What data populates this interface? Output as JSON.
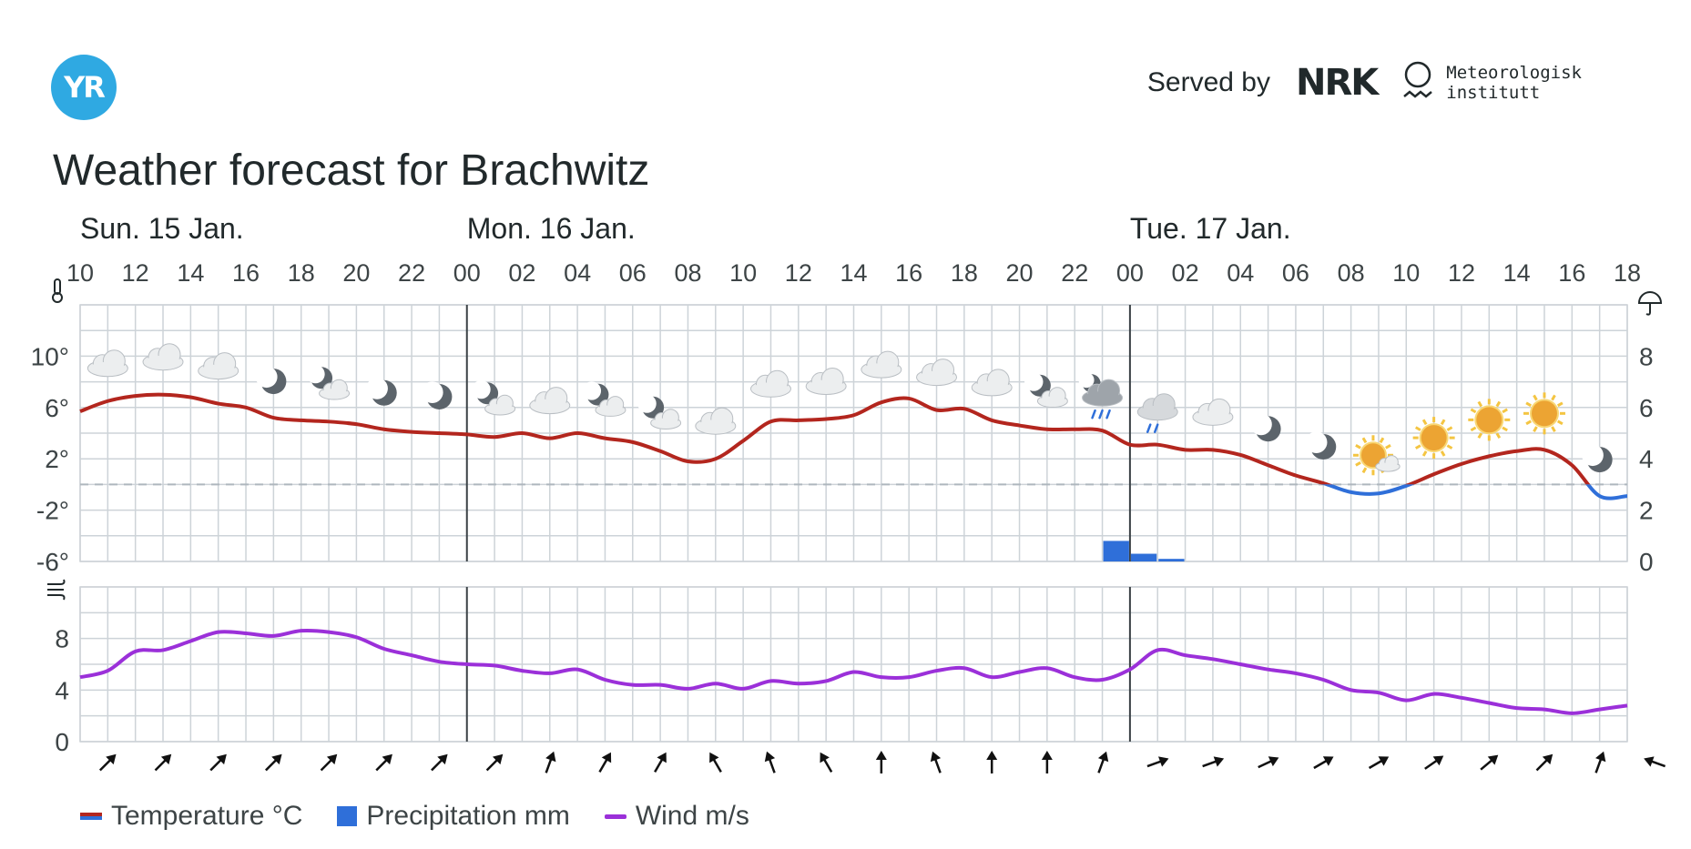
{
  "logo_text": "YR",
  "header": {
    "served_by": "Served by",
    "nrk": "NRK",
    "met_line1": "Meteorologisk",
    "met_line2": "institutt"
  },
  "title": "Weather forecast for Brachwitz",
  "legend": {
    "temperature": "Temperature °C",
    "precipitation": "Precipitation mm",
    "wind": "Wind m/s"
  },
  "colors": {
    "temp_warm": "#b3261e",
    "temp_cold": "#2f6fd9",
    "precip": "#2f6fd9",
    "wind": "#9b30d9",
    "grid": "#cdd3d8"
  },
  "chart_data": [
    {
      "type": "line",
      "days": [
        {
          "label": "Sun. 15 Jan.",
          "hour": 10
        },
        {
          "label": "Mon. 16 Jan.",
          "hour": 24
        },
        {
          "label": "Tue. 17 Jan.",
          "hour": 48
        }
      ],
      "x_tick_labels": [
        "10",
        "12",
        "14",
        "16",
        "18",
        "20",
        "22",
        "00",
        "02",
        "04",
        "06",
        "08",
        "10",
        "12",
        "14",
        "16",
        "18",
        "20",
        "22",
        "00",
        "02",
        "04",
        "06",
        "08",
        "10",
        "12",
        "14",
        "16",
        "18"
      ],
      "hours": [
        10,
        11,
        12,
        13,
        14,
        15,
        16,
        17,
        18,
        19,
        20,
        21,
        22,
        23,
        24,
        25,
        26,
        27,
        28,
        29,
        30,
        31,
        32,
        33,
        34,
        35,
        36,
        37,
        38,
        39,
        40,
        41,
        42,
        43,
        44,
        45,
        46,
        47,
        48,
        49,
        50,
        51,
        52,
        53,
        54,
        55,
        56,
        57,
        58,
        59,
        60,
        61,
        62,
        63,
        64,
        65,
        66
      ],
      "temperature": [
        5.7,
        6.5,
        6.9,
        7.0,
        6.8,
        6.3,
        6.0,
        5.2,
        5.0,
        4.9,
        4.7,
        4.3,
        4.1,
        4.0,
        3.9,
        3.7,
        4.0,
        3.6,
        4.0,
        3.6,
        3.3,
        2.6,
        1.8,
        2.0,
        3.4,
        4.9,
        5.0,
        5.1,
        5.4,
        6.4,
        6.7,
        5.8,
        5.9,
        5.0,
        4.6,
        4.3,
        4.3,
        4.2,
        3.1,
        3.1,
        2.7,
        2.7,
        2.3,
        1.5,
        0.7,
        0.1,
        -0.6,
        -0.7,
        -0.1,
        0.8,
        1.6,
        2.2,
        2.6,
        2.7,
        1.5,
        -0.9,
        -0.9
      ],
      "precipitation_bars": [
        {
          "from_hour": 47,
          "to_hour": 48,
          "value": 0.8
        },
        {
          "from_hour": 48,
          "to_hour": 49,
          "value": 0.3
        },
        {
          "from_hour": 49,
          "to_hour": 50,
          "value": 0.1
        }
      ],
      "symbols": [
        "cloudy",
        "cloudy",
        "cloudy",
        "clearsky_night",
        "partlycloudy_night",
        "clearsky_night",
        "clearsky_night",
        "partlycloudy_night",
        "cloudy",
        "partlycloudy_night",
        "partlycloudy_night",
        "cloudy",
        "cloudy",
        "cloudy",
        "cloudy",
        "cloudy",
        "cloudy",
        "partlycloudy_night",
        "rain",
        "lightrain",
        "cloudy",
        "clearsky_night",
        "clearsky_night",
        "partlycloudy_day",
        "clearsky_day",
        "clearsky_day",
        "clearsky_day",
        "clearsky_night"
      ],
      "left_axis_labels": [
        "10°",
        "6°",
        "2°",
        "-2°",
        "-6°"
      ],
      "right_axis_labels": [
        "8",
        "6",
        "4",
        "2",
        "0"
      ],
      "ylim_temperature": [
        -6,
        14
      ],
      "ylim_precipitation": [
        0,
        10
      ]
    },
    {
      "type": "line",
      "hours": [
        10,
        11,
        12,
        13,
        14,
        15,
        16,
        17,
        18,
        19,
        20,
        21,
        22,
        23,
        24,
        25,
        26,
        27,
        28,
        29,
        30,
        31,
        32,
        33,
        34,
        35,
        36,
        37,
        38,
        39,
        40,
        41,
        42,
        43,
        44,
        45,
        46,
        47,
        48,
        49,
        50,
        51,
        52,
        53,
        54,
        55,
        56,
        57,
        58,
        59,
        60,
        61,
        62,
        63,
        64,
        65,
        66
      ],
      "wind": [
        5.0,
        5.5,
        7.0,
        7.1,
        7.8,
        8.5,
        8.4,
        8.2,
        8.6,
        8.5,
        8.1,
        7.2,
        6.7,
        6.2,
        6.0,
        5.9,
        5.5,
        5.3,
        5.6,
        4.8,
        4.4,
        4.4,
        4.1,
        4.5,
        4.1,
        4.7,
        4.5,
        4.7,
        5.4,
        5.0,
        5.0,
        5.5,
        5.7,
        5.0,
        5.4,
        5.7,
        5.0,
        4.8,
        5.6,
        7.1,
        6.7,
        6.4,
        6.0,
        5.6,
        5.3,
        4.8,
        4.0,
        3.8,
        3.2,
        3.7,
        3.4,
        3.0,
        2.6,
        2.5,
        2.2,
        2.5,
        2.8
      ],
      "left_axis_labels": [
        "8",
        "4",
        "0"
      ],
      "ylim_wind": [
        0,
        12
      ],
      "wind_directions_deg": [
        45,
        45,
        45,
        45,
        45,
        45,
        45,
        45,
        20,
        30,
        30,
        330,
        340,
        330,
        0,
        340,
        0,
        0,
        20,
        70,
        70,
        65,
        60,
        60,
        55,
        50,
        45,
        20,
        290
      ]
    }
  ]
}
